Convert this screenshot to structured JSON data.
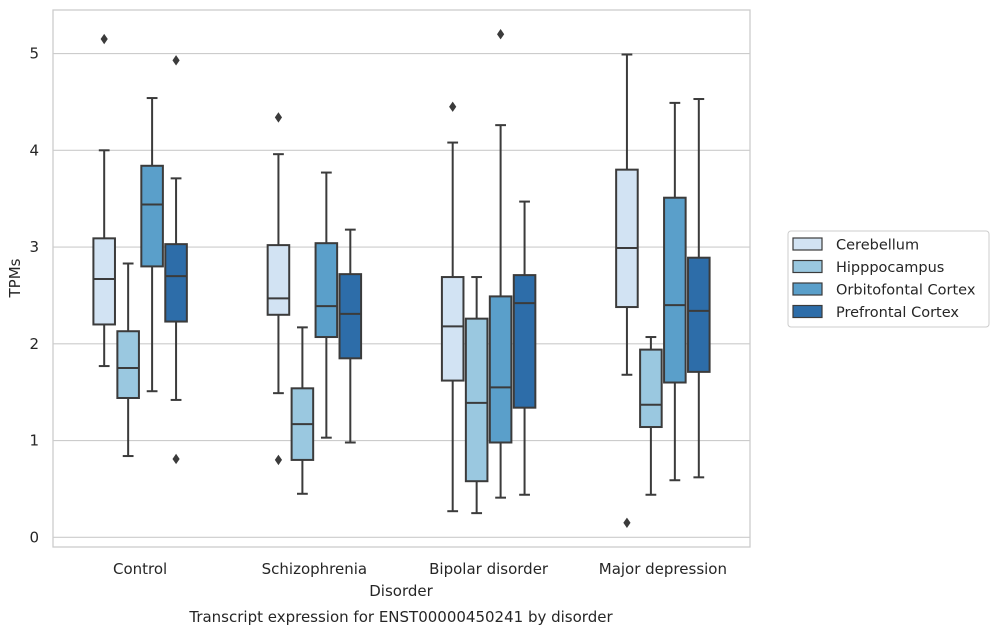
{
  "chart_data": {
    "type": "boxplot",
    "xlabel": "Disorder",
    "ylabel": "TPMs",
    "caption": "Transcript expression for ENST00000450241 by disorder",
    "ylim": [
      -0.1,
      5.45
    ],
    "yticks": [
      0,
      1,
      2,
      3,
      4,
      5
    ],
    "grid": "horizontal",
    "legend_position": "right",
    "categories": [
      "Control",
      "Schizophrenia",
      "Bipolar disorder",
      "Major depression"
    ],
    "series": [
      {
        "name": "Cerebellum",
        "color": "#d2e3f3",
        "boxes": [
          {
            "whislo": 1.77,
            "q1": 2.2,
            "med": 2.67,
            "q3": 3.09,
            "whishi": 4.0,
            "fliers": [
              5.15
            ]
          },
          {
            "whislo": 1.49,
            "q1": 2.3,
            "med": 2.47,
            "q3": 3.02,
            "whishi": 3.96,
            "fliers": [
              4.34,
              0.8
            ]
          },
          {
            "whislo": 0.27,
            "q1": 1.62,
            "med": 2.18,
            "q3": 2.69,
            "whishi": 4.08,
            "fliers": [
              4.45
            ]
          },
          {
            "whislo": 1.68,
            "q1": 2.38,
            "med": 2.99,
            "q3": 3.8,
            "whishi": 4.99,
            "fliers": [
              0.15
            ]
          }
        ]
      },
      {
        "name": "Hipppocampus",
        "color": "#9ac8e0",
        "boxes": [
          {
            "whislo": 0.84,
            "q1": 1.44,
            "med": 1.75,
            "q3": 2.13,
            "whishi": 2.83,
            "fliers": []
          },
          {
            "whislo": 0.45,
            "q1": 0.8,
            "med": 1.17,
            "q3": 1.54,
            "whishi": 2.17,
            "fliers": []
          },
          {
            "whislo": 0.25,
            "q1": 0.58,
            "med": 1.39,
            "q3": 2.26,
            "whishi": 2.69,
            "fliers": []
          },
          {
            "whislo": 0.44,
            "q1": 1.14,
            "med": 1.37,
            "q3": 1.94,
            "whishi": 2.07,
            "fliers": []
          }
        ]
      },
      {
        "name": "Orbitofontal Cortex",
        "color": "#5a9fca",
        "boxes": [
          {
            "whislo": 1.51,
            "q1": 2.8,
            "med": 3.44,
            "q3": 3.84,
            "whishi": 4.54,
            "fliers": []
          },
          {
            "whislo": 1.03,
            "q1": 2.07,
            "med": 2.39,
            "q3": 3.04,
            "whishi": 3.77,
            "fliers": []
          },
          {
            "whislo": 0.41,
            "q1": 0.98,
            "med": 1.55,
            "q3": 2.49,
            "whishi": 4.26,
            "fliers": [
              5.2
            ]
          },
          {
            "whislo": 0.59,
            "q1": 1.6,
            "med": 2.4,
            "q3": 3.51,
            "whishi": 4.49,
            "fliers": []
          }
        ]
      },
      {
        "name": "Prefrontal Cortex",
        "color": "#2d6da9",
        "boxes": [
          {
            "whislo": 1.42,
            "q1": 2.23,
            "med": 2.7,
            "q3": 3.03,
            "whishi": 3.71,
            "fliers": [
              4.93,
              0.81
            ]
          },
          {
            "whislo": 0.98,
            "q1": 1.85,
            "med": 2.31,
            "q3": 2.72,
            "whishi": 3.18,
            "fliers": []
          },
          {
            "whislo": 0.44,
            "q1": 1.34,
            "med": 2.42,
            "q3": 2.71,
            "whishi": 3.47,
            "fliers": []
          },
          {
            "whislo": 0.62,
            "q1": 1.71,
            "med": 2.34,
            "q3": 2.89,
            "whishi": 4.53,
            "fliers": []
          }
        ]
      }
    ]
  }
}
